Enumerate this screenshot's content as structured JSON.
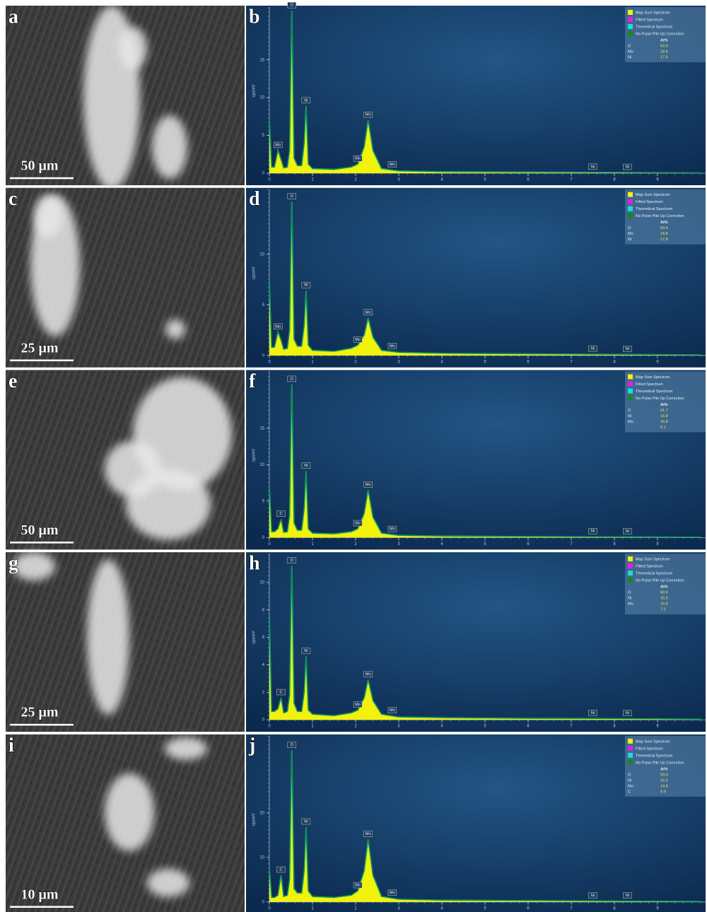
{
  "images": [
    {
      "panel_label": "a",
      "scale_bar": "50 μm"
    },
    {
      "panel_label": "c",
      "scale_bar": "25 μm"
    },
    {
      "panel_label": "e",
      "scale_bar": "50 μm"
    },
    {
      "panel_label": "g",
      "scale_bar": "25 μm"
    },
    {
      "panel_label": "i",
      "scale_bar": "10 μm"
    }
  ],
  "chart_data": [
    {
      "type": "spectrum",
      "panel_label": "b",
      "y_label": "cps/eV",
      "legend": [
        {
          "name": "Map Sum Spectrum",
          "color": "#f2f20a"
        },
        {
          "name": "Fitted Spectrum",
          "color": "#e020e0"
        },
        {
          "name": "Theoretical Spectrum",
          "color": "#20d8e0"
        },
        {
          "name": "No Pulse Pile Up Correction",
          "color": "#138a1e"
        }
      ],
      "x": [
        0,
        0.05,
        0.12,
        0.2,
        0.27,
        0.33,
        0.42,
        0.47,
        0.52,
        0.57,
        0.65,
        0.75,
        0.81,
        0.85,
        0.9,
        1.0,
        1.5,
        1.9,
        2.05,
        2.2,
        2.29,
        2.4,
        2.6,
        3,
        4,
        6,
        8,
        10
      ],
      "values": [
        7.2,
        0.8,
        0.8,
        3,
        1.8,
        0.7,
        0.8,
        3,
        21.5,
        2,
        1,
        1,
        4,
        8.9,
        1.2,
        0.6,
        0.5,
        0.8,
        1.2,
        3.5,
        7,
        3,
        0.6,
        0.3,
        0.2,
        0.15,
        0.1,
        0.05
      ],
      "xlim": [
        0,
        10
      ],
      "xticks": [
        0,
        1,
        2,
        3,
        4,
        5,
        6,
        7,
        8,
        9
      ],
      "ylim": [
        0,
        21.8
      ],
      "yticks": [
        0,
        5,
        10,
        15
      ],
      "peak_labels": [
        {
          "label": "O",
          "energy": 0.52
        },
        {
          "label": "Mo",
          "energy": 0.2
        },
        {
          "label": "Ni",
          "energy": 0.85
        },
        {
          "label": "Mo",
          "energy": 2.29
        },
        {
          "label": "Mo",
          "energy": 2.05
        },
        {
          "label": "Mo",
          "energy": 2.85
        },
        {
          "label": "Ni",
          "energy": 7.5
        },
        {
          "label": "Ni",
          "energy": 8.3
        }
      ],
      "table": {
        "header": "At%",
        "rows": [
          {
            "element": "O",
            "value": "63.5"
          },
          {
            "element": "Mo",
            "value": "18.9"
          },
          {
            "element": "Ni",
            "value": "17.6"
          }
        ]
      }
    },
    {
      "type": "spectrum",
      "panel_label": "d",
      "y_label": "cps/eV",
      "legend": [
        {
          "name": "Map Sum Spectrum",
          "color": "#f2f20a"
        },
        {
          "name": "Fitted Spectrum",
          "color": "#e020e0"
        },
        {
          "name": "Theoretical Spectrum",
          "color": "#20d8e0"
        },
        {
          "name": "No Pulse Pile Up Correction",
          "color": "#138a1e"
        }
      ],
      "x": [
        0,
        0.05,
        0.12,
        0.2,
        0.27,
        0.33,
        0.42,
        0.47,
        0.52,
        0.57,
        0.65,
        0.75,
        0.81,
        0.85,
        0.9,
        1.0,
        1.5,
        1.9,
        2.05,
        2.2,
        2.29,
        2.4,
        2.6,
        3,
        4,
        6,
        8,
        10
      ],
      "values": [
        7.2,
        0.8,
        0.8,
        2.3,
        1.5,
        0.6,
        0.7,
        2.5,
        15.2,
        1.6,
        0.9,
        0.9,
        3,
        6.4,
        1,
        0.5,
        0.4,
        0.7,
        1,
        2,
        3.7,
        1.8,
        0.5,
        0.3,
        0.2,
        0.15,
        0.1,
        0.05
      ],
      "xlim": [
        0,
        10
      ],
      "xticks": [
        0,
        1,
        2,
        3,
        4,
        5,
        6,
        7,
        8,
        9
      ],
      "ylim": [
        0,
        16.3
      ],
      "yticks": [
        0,
        5,
        10
      ],
      "peak_labels": [
        {
          "label": "O",
          "energy": 0.52
        },
        {
          "label": "Mo",
          "energy": 0.2
        },
        {
          "label": "Ni",
          "energy": 0.85
        },
        {
          "label": "Mo",
          "energy": 2.29
        },
        {
          "label": "Mo",
          "energy": 2.05
        },
        {
          "label": "Mo",
          "energy": 2.85
        },
        {
          "label": "Ni",
          "energy": 7.5
        },
        {
          "label": "Ni",
          "energy": 8.3
        }
      ],
      "table": {
        "header": "At%",
        "rows": [
          {
            "element": "O",
            "value": "63.4"
          },
          {
            "element": "Mo",
            "value": "18.8"
          },
          {
            "element": "Ni",
            "value": "17.8"
          }
        ]
      }
    },
    {
      "type": "spectrum",
      "panel_label": "f",
      "y_label": "cps/eV",
      "legend": [
        {
          "name": "Map Sum Spectrum",
          "color": "#f2f20a"
        },
        {
          "name": "Fitted Spectrum",
          "color": "#e020e0"
        },
        {
          "name": "Theoretical Spectrum",
          "color": "#20d8e0"
        },
        {
          "name": "No Pulse Pile Up Correction",
          "color": "#138a1e"
        }
      ],
      "x": [
        0,
        0.05,
        0.12,
        0.2,
        0.27,
        0.33,
        0.42,
        0.47,
        0.52,
        0.57,
        0.65,
        0.75,
        0.81,
        0.85,
        0.9,
        1.0,
        1.5,
        1.9,
        2.05,
        2.2,
        2.29,
        2.4,
        2.6,
        3,
        4,
        6,
        8,
        10
      ],
      "values": [
        7,
        0.8,
        0.8,
        1.2,
        2.5,
        0.7,
        0.8,
        3,
        21,
        2,
        1,
        1,
        4,
        9.1,
        1.2,
        0.6,
        0.5,
        0.8,
        1.2,
        3.3,
        6.5,
        2.8,
        0.6,
        0.3,
        0.2,
        0.15,
        0.1,
        0.05
      ],
      "xlim": [
        0,
        10
      ],
      "xticks": [
        0,
        1,
        2,
        3,
        4,
        5,
        6,
        7,
        8,
        9
      ],
      "ylim": [
        0,
        22.6
      ],
      "yticks": [
        0,
        5,
        10,
        15
      ],
      "peak_labels": [
        {
          "label": "O",
          "energy": 0.52
        },
        {
          "label": "C",
          "energy": 0.27
        },
        {
          "label": "Ni",
          "energy": 0.85
        },
        {
          "label": "Mo",
          "energy": 2.29
        },
        {
          "label": "Mo",
          "energy": 2.05
        },
        {
          "label": "Mo",
          "energy": 2.85
        },
        {
          "label": "Ni",
          "energy": 7.5
        },
        {
          "label": "Ni",
          "energy": 8.3
        }
      ],
      "table": {
        "header": "At%",
        "rows": [
          {
            "element": "O",
            "value": "61.7"
          },
          {
            "element": "Ni",
            "value": "16.9"
          },
          {
            "element": "Mo",
            "value": "16.8"
          },
          {
            "value": "5.1"
          }
        ]
      }
    },
    {
      "type": "spectrum",
      "panel_label": "h",
      "y_label": "cps/eV",
      "legend": [
        {
          "name": "Map Sum Spectrum",
          "color": "#f2f20a"
        },
        {
          "name": "Fitted Spectrum",
          "color": "#e020e0"
        },
        {
          "name": "Theoretical Spectrum",
          "color": "#20d8e0"
        },
        {
          "name": "No Pulse Pile Up Correction",
          "color": "#138a1e"
        }
      ],
      "x": [
        0,
        0.05,
        0.12,
        0.2,
        0.27,
        0.33,
        0.42,
        0.47,
        0.52,
        0.57,
        0.65,
        0.75,
        0.81,
        0.85,
        0.9,
        1.0,
        1.5,
        1.9,
        2.05,
        2.2,
        2.29,
        2.4,
        2.6,
        3,
        4,
        6,
        8,
        10
      ],
      "values": [
        7.4,
        0.6,
        0.6,
        0.8,
        1.6,
        0.5,
        0.6,
        1.8,
        11.2,
        1.2,
        0.6,
        0.6,
        2,
        4.6,
        0.7,
        0.4,
        0.3,
        0.5,
        0.7,
        1.6,
        2.9,
        1.4,
        0.4,
        0.2,
        0.15,
        0.1,
        0.08,
        0.04
      ],
      "xlim": [
        0,
        10
      ],
      "xticks": [
        0,
        1,
        2,
        3,
        4,
        5,
        6,
        7,
        8,
        9
      ],
      "ylim": [
        0,
        12
      ],
      "yticks": [
        0,
        2,
        4,
        6,
        8,
        10
      ],
      "peak_labels": [
        {
          "label": "O",
          "energy": 0.52
        },
        {
          "label": "C",
          "energy": 0.27
        },
        {
          "label": "Ni",
          "energy": 0.85
        },
        {
          "label": "Mo",
          "energy": 2.29
        },
        {
          "label": "Mo",
          "energy": 2.05
        },
        {
          "label": "Mo",
          "energy": 2.85
        },
        {
          "label": "Ni",
          "energy": 7.5
        },
        {
          "label": "Ni",
          "energy": 8.3
        }
      ],
      "table": {
        "header": "At%",
        "rows": [
          {
            "element": "O",
            "value": "60.9"
          },
          {
            "element": "Ni",
            "value": "16.0"
          },
          {
            "element": "Mo",
            "value": "15.8"
          },
          {
            "value": "7.2"
          }
        ]
      }
    },
    {
      "type": "spectrum",
      "panel_label": "j",
      "y_label": "cps/eV",
      "legend": [
        {
          "name": "Map Sum Spectrum",
          "color": "#f2f20a"
        },
        {
          "name": "Fitted Spectrum",
          "color": "#e020e0"
        },
        {
          "name": "Theoretical Spectrum",
          "color": "#20d8e0"
        },
        {
          "name": "No Pulse Pile Up Correction",
          "color": "#138a1e"
        }
      ],
      "x": [
        0,
        0.05,
        0.12,
        0.2,
        0.27,
        0.33,
        0.42,
        0.47,
        0.52,
        0.57,
        0.65,
        0.75,
        0.81,
        0.85,
        0.9,
        1.0,
        1.5,
        1.9,
        2.05,
        2.2,
        2.29,
        2.4,
        2.6,
        3,
        4,
        6,
        8,
        10
      ],
      "values": [
        7.3,
        1,
        1,
        1.5,
        6,
        1.2,
        1.5,
        5,
        34,
        3,
        2,
        2,
        7,
        16.8,
        2.5,
        1.2,
        1,
        1.5,
        2.5,
        7,
        14,
        6,
        1.2,
        0.6,
        0.4,
        0.3,
        0.2,
        0.1
      ],
      "xlim": [
        0,
        10
      ],
      "xticks": [
        0,
        1,
        2,
        3,
        4,
        5,
        6,
        7,
        8,
        9
      ],
      "ylim": [
        0,
        37
      ],
      "yticks": [
        0,
        10,
        20
      ],
      "peak_labels": [
        {
          "label": "O",
          "energy": 0.52
        },
        {
          "label": "C",
          "energy": 0.27
        },
        {
          "label": "Ni",
          "energy": 0.85
        },
        {
          "label": "Mo",
          "energy": 2.29
        },
        {
          "label": "Mo",
          "energy": 2.05
        },
        {
          "label": "Mo",
          "energy": 2.85
        },
        {
          "label": "Ni",
          "energy": 7.5
        },
        {
          "label": "Ni",
          "energy": 8.3
        }
      ],
      "table": {
        "header": "At%",
        "rows": [
          {
            "element": "O",
            "value": "59.6"
          },
          {
            "element": "Ni",
            "value": "15.5"
          },
          {
            "element": "Mo",
            "value": "14.8"
          },
          {
            "element": "C",
            "value": "9.9"
          }
        ]
      }
    }
  ]
}
